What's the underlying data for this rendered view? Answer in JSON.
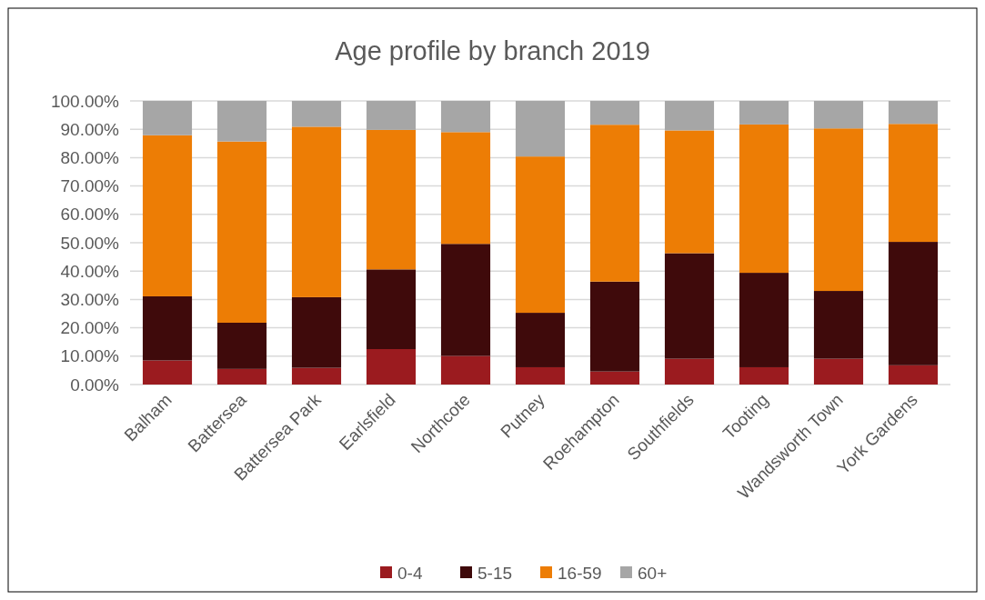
{
  "chart_data": {
    "type": "bar",
    "title": "Age profile by branch 2019",
    "stacked": true,
    "grid": "y",
    "legend": "bottom",
    "categories": [
      "Balham",
      "Battersea",
      "Battersea Park",
      "Earlsfield",
      "Northcote",
      "Putney",
      "Roehampton",
      "Southfields",
      "Tooting",
      "Wandsworth Town",
      "York Gardens"
    ],
    "series": [
      {
        "name": "0-4",
        "color": "#9b1b1f",
        "values": [
          8.5,
          5.5,
          5.9,
          12.5,
          10.1,
          6.1,
          4.6,
          9.1,
          6.1,
          9.1,
          6.8
        ]
      },
      {
        "name": "5-15",
        "color": "#3f0a0b",
        "values": [
          22.6,
          16.3,
          24.9,
          28.1,
          39.5,
          19.2,
          31.7,
          37.2,
          33.3,
          23.9,
          43.5
        ]
      },
      {
        "name": "16-59",
        "color": "#ed7d05",
        "values": [
          56.8,
          63.9,
          60.1,
          49.2,
          39.4,
          55.1,
          55.3,
          43.3,
          52.3,
          57.3,
          41.6
        ]
      },
      {
        "name": "60+",
        "color": "#a6a6a6",
        "values": [
          12.1,
          14.3,
          9.1,
          10.2,
          11.0,
          19.6,
          8.4,
          10.4,
          8.3,
          9.7,
          8.1
        ]
      }
    ],
    "ylim": [
      0,
      100
    ],
    "yticks": [
      {
        "value": 0,
        "label": "0.00%"
      },
      {
        "value": 10,
        "label": "10.00%"
      },
      {
        "value": 20,
        "label": "20.00%"
      },
      {
        "value": 30,
        "label": "30.00%"
      },
      {
        "value": 40,
        "label": "40.00%"
      },
      {
        "value": 50,
        "label": "50.00%"
      },
      {
        "value": 60,
        "label": "60.00%"
      },
      {
        "value": 70,
        "label": "70.00%"
      },
      {
        "value": 80,
        "label": "80.00%"
      },
      {
        "value": 90,
        "label": "90.00%"
      },
      {
        "value": 100,
        "label": "100.00%"
      }
    ]
  }
}
